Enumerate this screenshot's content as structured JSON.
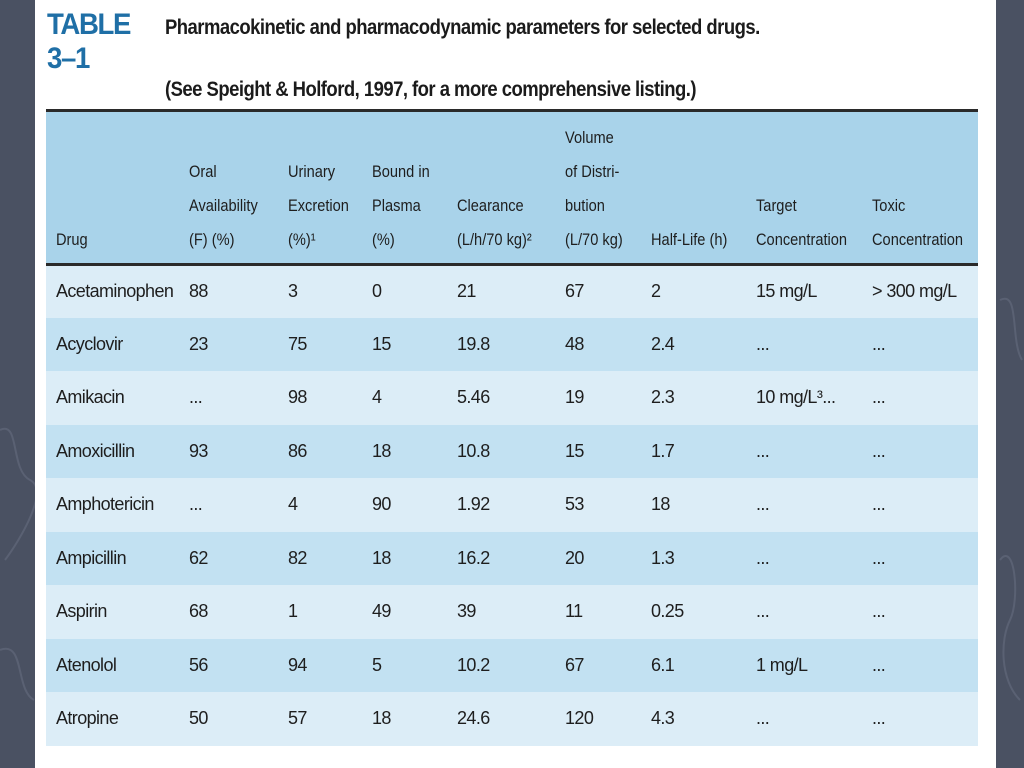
{
  "caption": {
    "label": "TABLE 3–1",
    "title_line1": "Pharmacokinetic and pharmacodynamic parameters for selected drugs.",
    "title_line2": "(See Speight & Holford, 1997, for a more comprehensive listing.)"
  },
  "columns": [
    {
      "key": "drug",
      "lines": [
        "Drug"
      ]
    },
    {
      "key": "oral",
      "lines": [
        "Oral",
        "Availability",
        "(F) (%)"
      ]
    },
    {
      "key": "urinary",
      "lines": [
        "Urinary",
        "Excretion",
        "(%)¹"
      ]
    },
    {
      "key": "bound",
      "lines": [
        "Bound in",
        "Plasma",
        "(%)"
      ]
    },
    {
      "key": "clearance",
      "lines": [
        "Clearance",
        "(L/h/70 kg)²"
      ]
    },
    {
      "key": "volume",
      "lines": [
        "Volume",
        "of Distri-",
        "bution",
        "(L/70 kg)"
      ]
    },
    {
      "key": "halflife",
      "lines": [
        "Half-Life (h)"
      ]
    },
    {
      "key": "target",
      "lines": [
        "Target",
        "Concentration"
      ]
    },
    {
      "key": "toxic",
      "lines": [
        "Toxic",
        "Concentration"
      ]
    }
  ],
  "rows": [
    [
      "Acetaminophen",
      "88",
      "3",
      "0",
      "21",
      "67",
      "2",
      "15 mg/L",
      "> 300 mg/L"
    ],
    [
      "Acyclovir",
      "23",
      "75",
      "15",
      "19.8",
      "48",
      "2.4",
      "...",
      "..."
    ],
    [
      "Amikacin",
      "...",
      "98",
      "4",
      "5.46",
      "19",
      "2.3",
      "10 mg/L³...",
      "..."
    ],
    [
      "Amoxicillin",
      "93",
      "86",
      "18",
      "10.8",
      "15",
      "1.7",
      "...",
      "..."
    ],
    [
      "Amphotericin",
      "...",
      "4",
      "90",
      "1.92",
      "53",
      "18",
      "...",
      "..."
    ],
    [
      "Ampicillin",
      "62",
      "82",
      "18",
      "16.2",
      "20",
      "1.3",
      "...",
      "..."
    ],
    [
      "Aspirin",
      "68",
      "1",
      "49",
      "39",
      "11",
      "0.25",
      "...",
      "..."
    ],
    [
      "Atenolol",
      "56",
      "94",
      "5",
      "10.2",
      "67",
      "6.1",
      "1 mg/L",
      "..."
    ],
    [
      "Atropine",
      "50",
      "57",
      "18",
      "24.6",
      "120",
      "4.3",
      "...",
      "..."
    ]
  ]
}
